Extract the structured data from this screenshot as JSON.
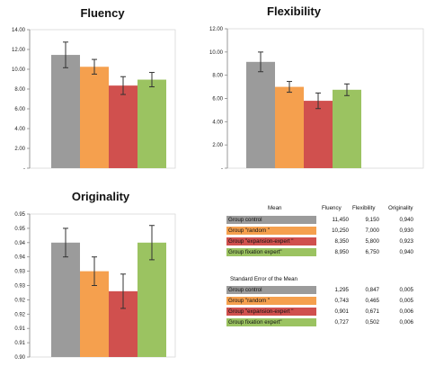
{
  "chart_data": [
    {
      "type": "bar",
      "title": "Fluency",
      "categories": [
        "Group control",
        "Group \"random \"",
        "Group \"expansion-expert \"",
        "Group fixation expert\""
      ],
      "values": [
        11.45,
        10.25,
        8.35,
        8.95
      ],
      "errors": [
        1.295,
        0.743,
        0.901,
        0.727
      ],
      "colors": [
        "#9b9b9b",
        "#f5a04e",
        "#d0504e",
        "#9bc361"
      ],
      "ylim": [
        0,
        14
      ],
      "yticks": [
        0,
        2,
        4,
        6,
        8,
        10,
        12,
        14
      ],
      "yticklabels": [
        "-",
        "2.00",
        "4.00",
        "6.00",
        "8.00",
        "10.00",
        "12.00",
        "14.00"
      ],
      "grid": false
    },
    {
      "type": "bar",
      "title": "Flexibility",
      "categories": [
        "Group control",
        "Group \"random \"",
        "Group \"expansion-expert \"",
        "Group fixation expert\""
      ],
      "values": [
        9.15,
        7.0,
        5.8,
        6.75
      ],
      "errors": [
        0.847,
        0.465,
        0.671,
        0.502
      ],
      "colors": [
        "#9b9b9b",
        "#f5a04e",
        "#d0504e",
        "#9bc361"
      ],
      "ylim": [
        0,
        12
      ],
      "yticks": [
        0,
        2,
        4,
        6,
        8,
        10,
        12
      ],
      "yticklabels": [
        "-",
        "2.00",
        "4.00",
        "6.00",
        "8.00",
        "10.00",
        "12.00"
      ],
      "grid": false
    },
    {
      "type": "bar",
      "title": "Originality",
      "categories": [
        "Group control",
        "Group \"random \"",
        "Group \"expansion-expert \"",
        "Group fixation expert\""
      ],
      "values": [
        0.94,
        0.93,
        0.923,
        0.94
      ],
      "errors": [
        0.005,
        0.005,
        0.006,
        0.006
      ],
      "colors": [
        "#9b9b9b",
        "#f5a04e",
        "#d0504e",
        "#9bc361"
      ],
      "ylim": [
        0.9,
        0.95
      ],
      "yticks": [
        0.9,
        0.905,
        0.91,
        0.915,
        0.92,
        0.925,
        0.93,
        0.935,
        0.94,
        0.945,
        0.95
      ],
      "yticklabels": [
        "0.90",
        "0.91",
        "0.91",
        "0.92",
        "0.92",
        "0.93",
        "0.93",
        "0.94",
        "0.94",
        "0.95",
        "0.95"
      ],
      "grid": false
    },
    {
      "type": "table",
      "mean_table": {
        "title": "Mean",
        "columns": [
          "Fluency",
          "Flexibility",
          "Originality"
        ],
        "rows": [
          {
            "group": "Group control",
            "values": [
              "11,450",
              "9,150",
              "0,940"
            ]
          },
          {
            "group": "Group \"random \"",
            "values": [
              "10,250",
              "7,000",
              "0,930"
            ]
          },
          {
            "group": "Group \"expansion-expert \"",
            "values": [
              "8,350",
              "5,800",
              "0,923"
            ]
          },
          {
            "group": "Group fixation expert\"",
            "values": [
              "8,950",
              "6,750",
              "0,940"
            ]
          }
        ]
      },
      "se_table": {
        "title": "Standard Error of the Mean",
        "rows": [
          {
            "group": "Group control",
            "values": [
              "1,295",
              "0,847",
              "0,005"
            ]
          },
          {
            "group": "Group \"random \"",
            "values": [
              "0,743",
              "0,465",
              "0,005"
            ]
          },
          {
            "group": "Group \"expansion-expert \"",
            "values": [
              "0,901",
              "0,671",
              "0,006"
            ]
          },
          {
            "group": "Group fixation expert\"",
            "values": [
              "0,727",
              "0,502",
              "0,006"
            ]
          }
        ]
      }
    }
  ]
}
